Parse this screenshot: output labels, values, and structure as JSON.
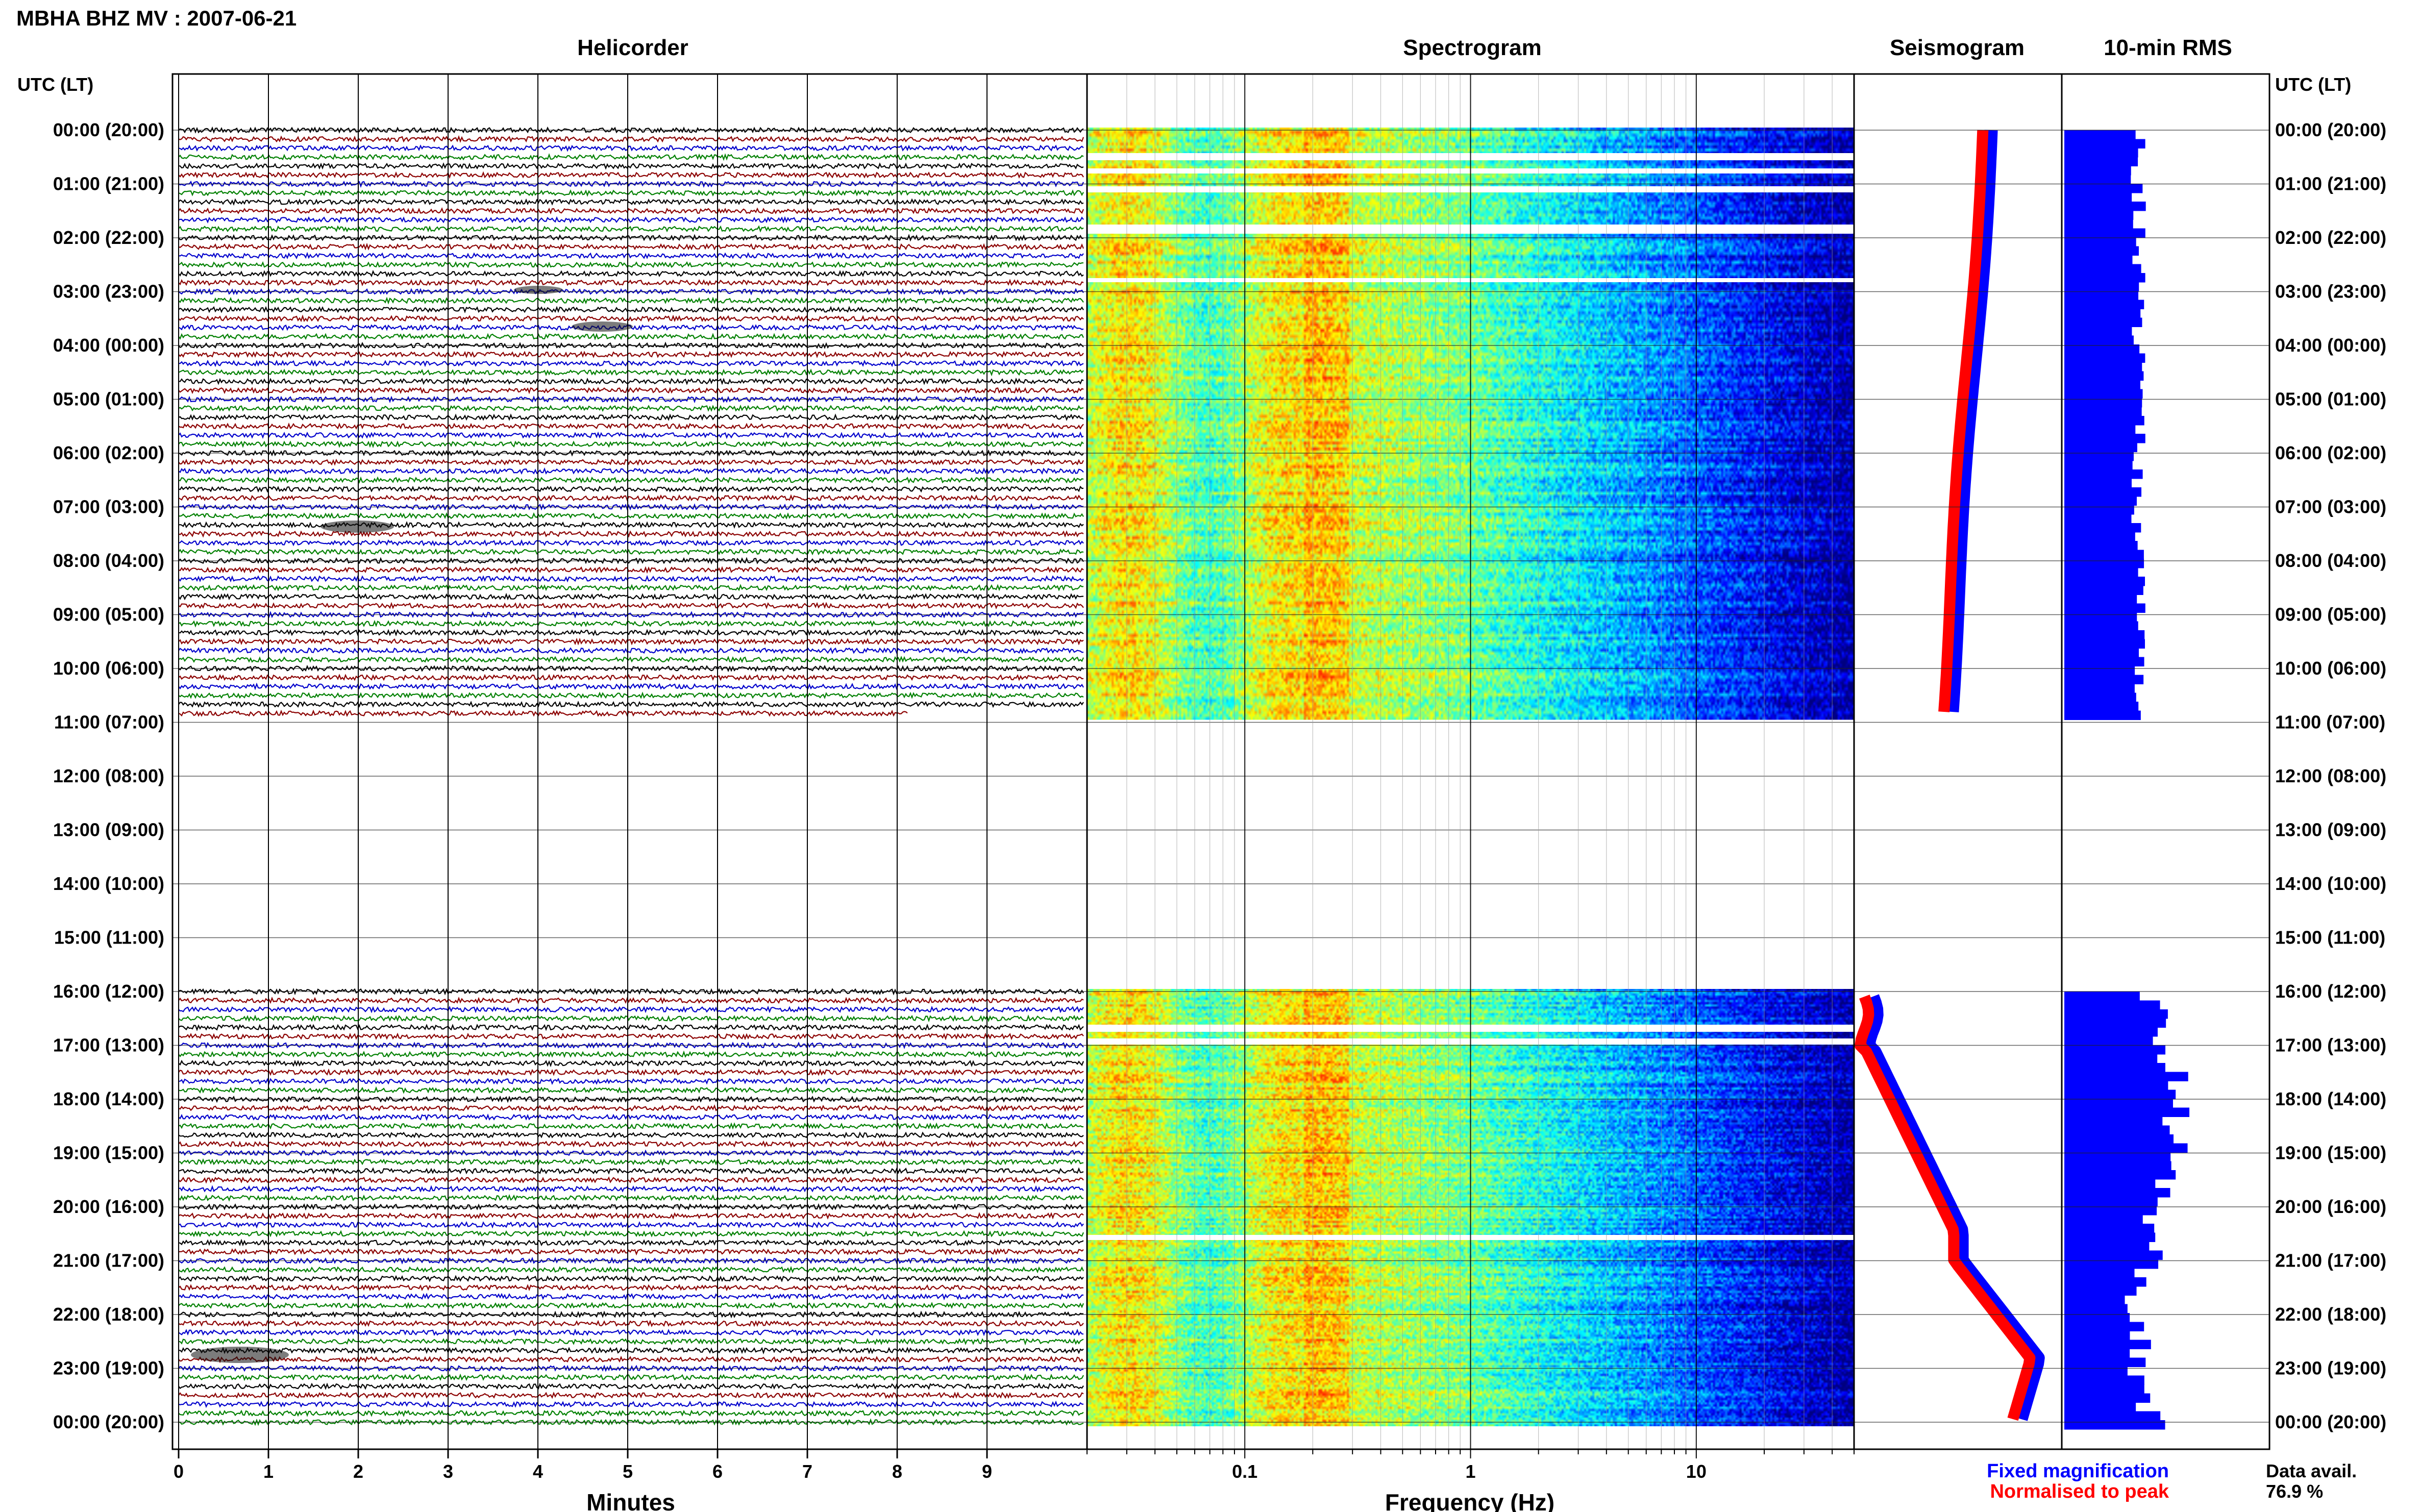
{
  "chart_data": {
    "type": "seismic-summary",
    "title": "MBHA BHZ MV : 2007-06-21",
    "time_axis_label": "UTC (LT)",
    "hour_labels": [
      "00:00 (20:00)",
      "01:00 (21:00)",
      "02:00 (22:00)",
      "03:00 (23:00)",
      "04:00 (00:00)",
      "05:00 (01:00)",
      "06:00 (02:00)",
      "07:00 (03:00)",
      "08:00 (04:00)",
      "09:00 (05:00)",
      "10:00 (06:00)",
      "11:00 (07:00)",
      "12:00 (08:00)",
      "13:00 (09:00)",
      "14:00 (10:00)",
      "15:00 (11:00)",
      "16:00 (12:00)",
      "17:00 (13:00)",
      "18:00 (14:00)",
      "19:00 (15:00)",
      "20:00 (16:00)",
      "21:00 (17:00)",
      "22:00 (18:00)",
      "23:00 (19:00)",
      "00:00 (20:00)"
    ],
    "data_gap_hours": [
      11,
      16
    ],
    "panels": {
      "helicorder": {
        "title": "Helicorder",
        "xlabel": "Minutes",
        "xticks": [
          "0",
          "1",
          "2",
          "3",
          "4",
          "5",
          "6",
          "7",
          "8",
          "9"
        ],
        "xlim": [
          0,
          10
        ],
        "trace_colors": [
          "#000000",
          "#8b0000",
          "#0000cc",
          "#008000"
        ]
      },
      "spectrogram": {
        "title": "Spectrogram",
        "xlabel": "Frequency (Hz)",
        "xticks": [
          "0.1",
          "1",
          "10"
        ],
        "xlim": [
          0.02,
          50
        ],
        "scale": "log"
      },
      "seismogram": {
        "title": "Seismogram",
        "series": [
          {
            "name": "Fixed magnification",
            "color": "#0000ff"
          },
          {
            "name": "Normalised to peak",
            "color": "#ff0000"
          }
        ]
      },
      "rms": {
        "title": "10-min RMS",
        "color": "#0000ff"
      }
    },
    "data_availability": {
      "label": "Data avail.",
      "value": "76.9 %"
    }
  }
}
